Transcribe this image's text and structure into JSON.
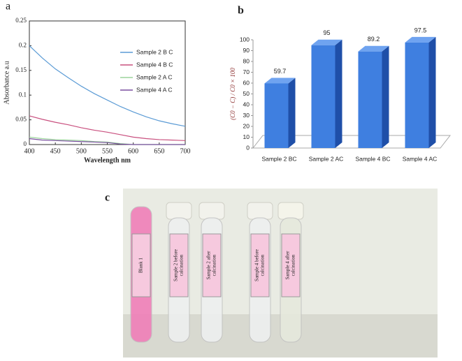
{
  "chart_data": [
    {
      "type": "line",
      "panel_label": "a",
      "xlabel": "Wavelength nm",
      "ylabel": "Absorbance a.u",
      "x": [
        400,
        425,
        450,
        475,
        500,
        525,
        550,
        575,
        600,
        625,
        650,
        675,
        700
      ],
      "series": [
        {
          "name": "Sample 2 B C",
          "color": "#5b9bd5",
          "values": [
            0.2,
            0.175,
            0.153,
            0.135,
            0.118,
            0.103,
            0.09,
            0.077,
            0.066,
            0.056,
            0.048,
            0.042,
            0.037
          ]
        },
        {
          "name": "Sample 4 B C",
          "color": "#c9507f",
          "values": [
            0.058,
            0.051,
            0.045,
            0.04,
            0.034,
            0.029,
            0.025,
            0.02,
            0.015,
            0.012,
            0.01,
            0.009,
            0.008
          ]
        },
        {
          "name": "Sample 2 A C",
          "color": "#9bd49b",
          "values": [
            0.015,
            0.012,
            0.01,
            0.009,
            0.008,
            0.006,
            0.005,
            0.002,
            0,
            0,
            0,
            0,
            0
          ]
        },
        {
          "name": "Sample 4 A C",
          "color": "#7a4fa0",
          "values": [
            0.012,
            0.009,
            0.008,
            0.007,
            0.006,
            0.005,
            0.004,
            0.001,
            0,
            0,
            0,
            0,
            0
          ]
        }
      ],
      "xlim": [
        400,
        700
      ],
      "xticks": [
        400,
        450,
        500,
        550,
        600,
        650,
        700
      ],
      "ylim": [
        0,
        0.25
      ],
      "yticks": [
        0,
        0.05,
        0.1,
        0.15,
        0.2,
        0.25
      ],
      "legend": "right"
    },
    {
      "type": "bar",
      "panel_label": "b",
      "ylabel": "(C0 − C) / C0 × 100",
      "categories": [
        "Sample 2 BC",
        "Sample 2 AC",
        "Sample 4 BC",
        "Sample 4 AC"
      ],
      "values": [
        59.7,
        95,
        89.2,
        97.5
      ],
      "color": "#3f7fe0",
      "ylim": [
        0,
        100
      ],
      "yticks": [
        0,
        10,
        20,
        30,
        40,
        50,
        60,
        70,
        80,
        90,
        100
      ]
    }
  ],
  "photo": {
    "panel_label": "c",
    "tube_labels": [
      [
        "Blank 1"
      ],
      [
        "Sample 2 before",
        "calcination"
      ],
      [
        "Sample 2 after",
        "calcination"
      ],
      [
        "Sample 4 before",
        "calcination"
      ],
      [
        "Sample 4 after",
        "calcination"
      ]
    ]
  }
}
